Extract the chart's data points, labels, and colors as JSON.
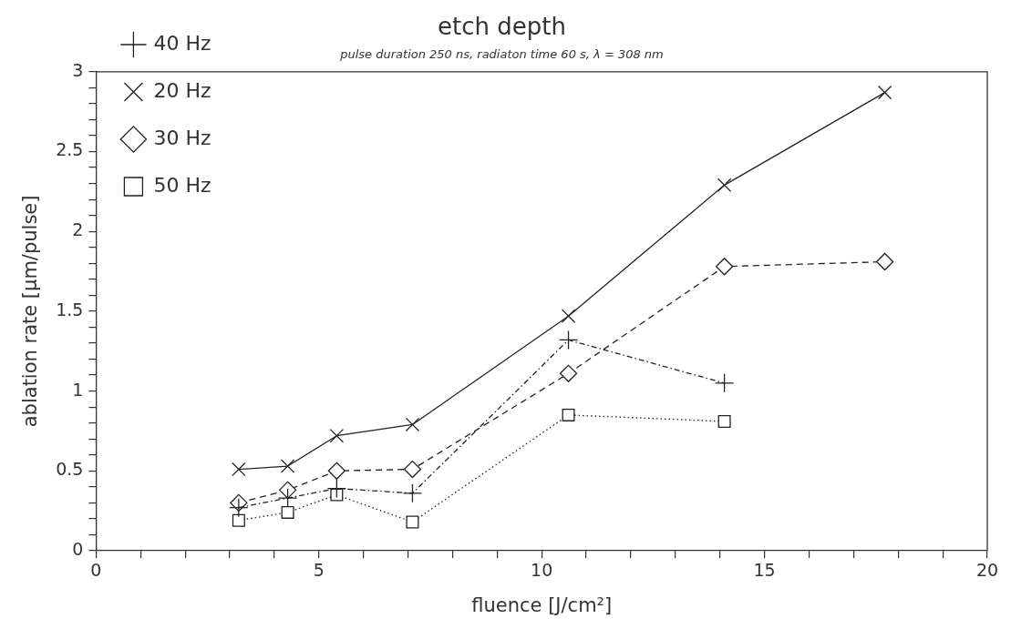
{
  "chart_data": {
    "type": "line",
    "title": "etch depth",
    "subtitle": "pulse duration 250 ns, radiaton time 60 s, λ = 308 nm",
    "xlabel": "fluence [J/cm²]",
    "ylabel": "ablation rate [µm/pulse]",
    "x": [
      3.2,
      4.3,
      5.4,
      7.1,
      10.6,
      14.1,
      17.7
    ],
    "series": [
      {
        "name": "20 Hz",
        "color": "#222222",
        "marker": "x",
        "line_style": "solid",
        "values": [
          0.51,
          0.53,
          0.72,
          0.79,
          1.47,
          2.29,
          2.87
        ]
      },
      {
        "name": "30 Hz",
        "color": "#222222",
        "marker": "diamond",
        "line_style": "dashed",
        "values": [
          0.3,
          0.38,
          0.5,
          0.51,
          1.11,
          1.78,
          1.81
        ]
      },
      {
        "name": "40 Hz",
        "color": "#222222",
        "marker": "cross",
        "line_style": "dashdot",
        "values": [
          0.27,
          0.33,
          0.39,
          0.36,
          1.32,
          1.05,
          null
        ]
      },
      {
        "name": "50 Hz",
        "color": "#222222",
        "marker": "square",
        "line_style": "dotted",
        "values": [
          0.19,
          0.24,
          0.35,
          0.18,
          0.85,
          0.81,
          null
        ]
      }
    ],
    "xlim": [
      0,
      20
    ],
    "ylim": [
      0,
      3
    ],
    "xticks": [
      0,
      {
        "value": 1,
        "label": null
      },
      {
        "value": 2,
        "label": null
      },
      {
        "value": 3,
        "label": null
      },
      {
        "value": 4,
        "label": null
      },
      5,
      {
        "value": 6,
        "label": null
      },
      {
        "value": 7,
        "label": null
      },
      {
        "value": 8,
        "label": null
      },
      {
        "value": 9,
        "label": null
      },
      10,
      {
        "value": 11,
        "label": null
      },
      {
        "value": 12,
        "label": null
      },
      {
        "value": 13,
        "label": null
      },
      {
        "value": 14,
        "label": null
      },
      15,
      {
        "value": 16,
        "label": null
      },
      {
        "value": 17,
        "label": null
      },
      {
        "value": 18,
        "label": null
      },
      {
        "value": 19,
        "label": null
      },
      20
    ],
    "yticks": [
      0,
      {
        "value": 0.1,
        "label": null
      },
      {
        "value": 0.2,
        "label": null
      },
      {
        "value": 0.3,
        "label": null
      },
      {
        "value": 0.4,
        "label": null
      },
      0.5,
      {
        "value": 0.6,
        "label": null
      },
      {
        "value": 0.7,
        "label": null
      },
      {
        "value": 0.8,
        "label": null
      },
      {
        "value": 0.9,
        "label": null
      },
      1,
      {
        "value": 1.1,
        "label": null
      },
      {
        "value": 1.2,
        "label": null
      },
      {
        "value": 1.3,
        "label": null
      },
      {
        "value": 1.4,
        "label": null
      },
      1.5,
      {
        "value": 1.6,
        "label": null
      },
      {
        "value": 1.7,
        "label": null
      },
      {
        "value": 1.8,
        "label": null
      },
      {
        "value": 1.9,
        "label": null
      },
      2,
      {
        "value": 2.1,
        "label": null
      },
      {
        "value": 2.2,
        "label": null
      },
      {
        "value": 2.3,
        "label": null
      },
      {
        "value": 2.4,
        "label": null
      },
      2.5,
      {
        "value": 2.6,
        "label": null
      },
      {
        "value": 2.7,
        "label": null
      },
      {
        "value": 2.8,
        "label": null
      },
      {
        "value": 2.9,
        "label": null
      },
      3
    ],
    "grid": false,
    "legend": "top left"
  }
}
